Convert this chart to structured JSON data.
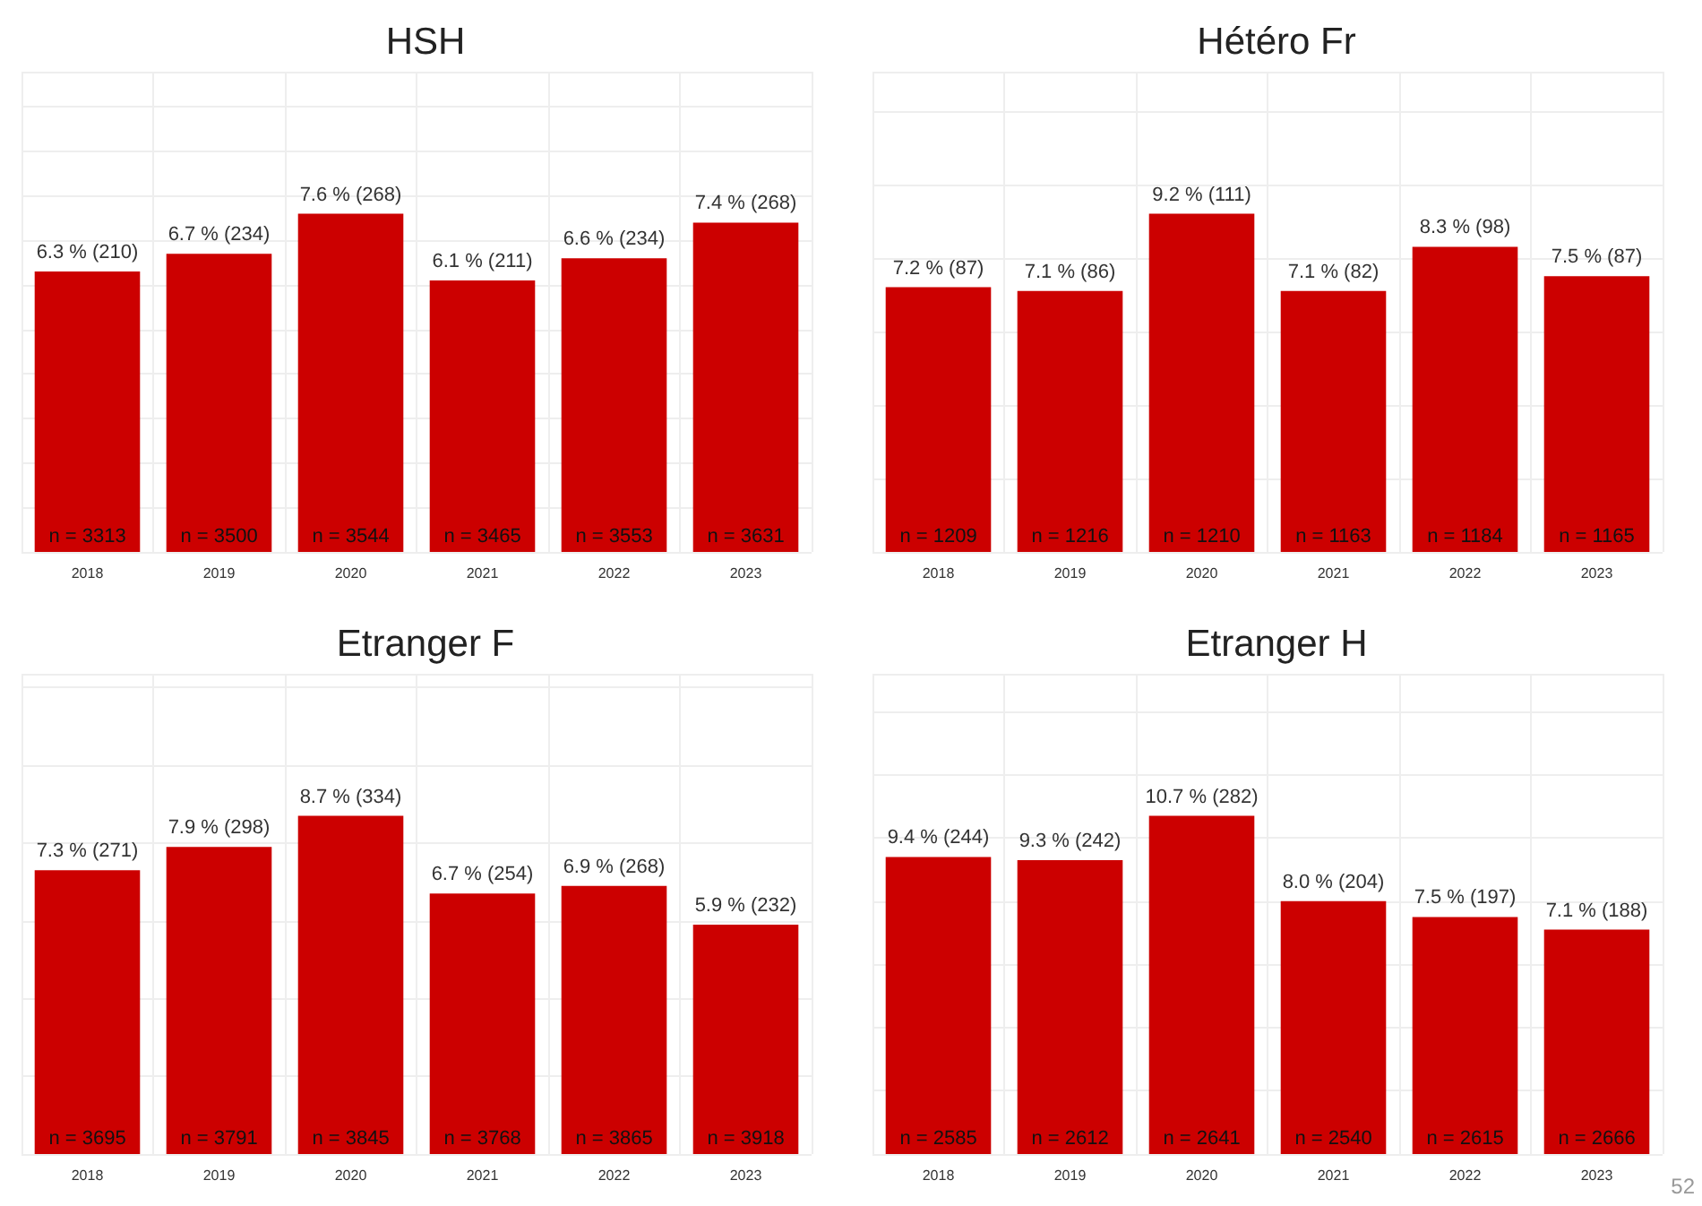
{
  "chart_data": [
    {
      "type": "bar",
      "title": "HSH",
      "categories": [
        "2018",
        "2019",
        "2020",
        "2021",
        "2022",
        "2023"
      ],
      "values": [
        6.3,
        6.7,
        7.6,
        6.1,
        6.6,
        7.4
      ],
      "value_labels": [
        "6.3 % (210)",
        "6.7 % (234)",
        "7.6 % (268)",
        "6.1 % (211)",
        "6.6 % (234)",
        "7.4 % (268)"
      ],
      "color": "#cc0000",
      "grid": true,
      "annotations": [
        "n = 3313",
        "n = 3500",
        "n = 3544",
        "n = 3465",
        "n = 3553",
        "n = 3631"
      ]
    },
    {
      "type": "bar",
      "title": "Hétéro Fr",
      "categories": [
        "2018",
        "2019",
        "2020",
        "2021",
        "2022",
        "2023"
      ],
      "values": [
        7.2,
        7.1,
        9.2,
        7.1,
        8.3,
        7.5
      ],
      "value_labels": [
        "7.2 % (87)",
        "7.1 % (86)",
        "9.2 % (111)",
        "7.1 % (82)",
        "8.3 % (98)",
        "7.5 % (87)"
      ],
      "color": "#cc0000",
      "grid": true,
      "annotations": [
        "n = 1209",
        "n = 1216",
        "n = 1210",
        "n = 1163",
        "n = 1184",
        "n = 1165"
      ]
    },
    {
      "type": "bar",
      "title": "Etranger F",
      "categories": [
        "2018",
        "2019",
        "2020",
        "2021",
        "2022",
        "2023"
      ],
      "values": [
        7.3,
        7.9,
        8.7,
        6.7,
        6.9,
        5.9
      ],
      "value_labels": [
        "7.3 % (271)",
        "7.9 % (298)",
        "8.7 % (334)",
        "6.7 % (254)",
        "6.9 % (268)",
        "5.9 % (232)"
      ],
      "color": "#cc0000",
      "grid": true,
      "annotations": [
        "n = 3695",
        "n = 3791",
        "n = 3845",
        "n = 3768",
        "n = 3865",
        "n = 3918"
      ]
    },
    {
      "type": "bar",
      "title": "Etranger H",
      "categories": [
        "2018",
        "2019",
        "2020",
        "2021",
        "2022",
        "2023"
      ],
      "values": [
        9.4,
        9.3,
        10.7,
        8.0,
        7.5,
        7.1
      ],
      "value_labels": [
        "9.4 % (244)",
        "9.3 % (242)",
        "10.7 % (282)",
        "8.0 % (204)",
        "7.5 % (197)",
        "7.1 % (188)"
      ],
      "color": "#cc0000",
      "grid": true,
      "annotations": [
        "n = 2585",
        "n = 2612",
        "n = 2641",
        "n = 2540",
        "n = 2615",
        "n = 2666",
        "52"
      ]
    }
  ]
}
